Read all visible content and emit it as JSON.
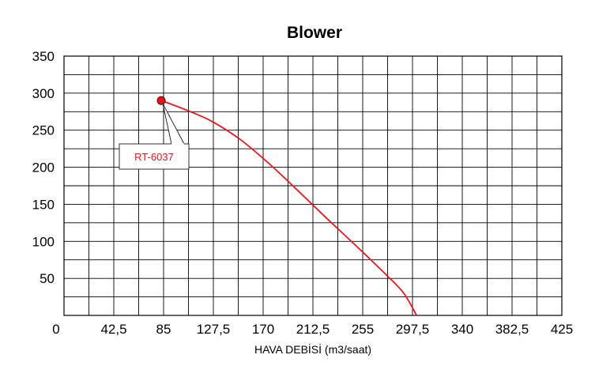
{
  "chart_data": {
    "type": "line",
    "title": "Blower",
    "xlabel": "HAVA DEBİSİ (m3/saat)",
    "ylabel": "",
    "xlim": [
      0,
      425
    ],
    "ylim": [
      0,
      350
    ],
    "x_tick_labels": [
      "0",
      "42,5",
      "85",
      "127,5",
      "170",
      "212,5",
      "255",
      "297,5",
      "340",
      "382,5",
      "425"
    ],
    "y_tick_labels": [
      "50",
      "100",
      "150",
      "200",
      "250",
      "300",
      "350"
    ],
    "grid": true,
    "series": [
      {
        "name": "RT-6037",
        "color": "#e8141b",
        "x": [
          83,
          100,
          125,
          150,
          175,
          200,
          225,
          250,
          275,
          290,
          301
        ],
        "y": [
          290,
          280,
          263,
          238,
          205,
          168,
          130,
          93,
          55,
          30,
          0
        ]
      }
    ],
    "annotation": {
      "label": "RT-6037",
      "x": 83,
      "y": 290
    }
  }
}
